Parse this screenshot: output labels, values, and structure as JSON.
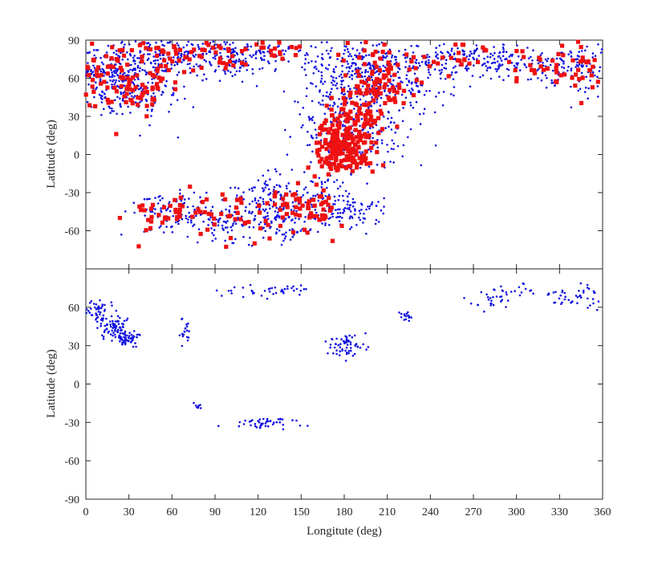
{
  "chart_data": [
    {
      "type": "scatter",
      "panel": "top",
      "xlabel": "",
      "ylabel": "Latitude (deg)",
      "xlim": [
        0,
        360
      ],
      "ylim": [
        -90,
        90
      ],
      "xticks": [],
      "yticks": [
        -60,
        -30,
        0,
        30,
        60,
        90
      ],
      "ytick_labels": [
        "-60",
        "-30",
        "0",
        "30",
        "60",
        "90"
      ],
      "grid": false,
      "series": [
        {
          "color": "#1010e0",
          "marker": "dot",
          "clusters": [
            {
              "x": 0,
              "y": 70,
              "sx": 2,
              "sy": 12,
              "n": 20
            },
            {
              "x": 15,
              "y": 60,
              "sx": 12,
              "sy": 12,
              "n": 180
            },
            {
              "x": 40,
              "y": 55,
              "sx": 12,
              "sy": 14,
              "n": 150
            },
            {
              "x": 55,
              "y": 75,
              "sx": 18,
              "sy": 8,
              "n": 110
            },
            {
              "x": 80,
              "y": 80,
              "sx": 22,
              "sy": 6,
              "n": 90
            },
            {
              "x": 105,
              "y": 70,
              "sx": 12,
              "sy": 8,
              "n": 60
            },
            {
              "x": 130,
              "y": 80,
              "sx": 18,
              "sy": 6,
              "n": 60
            },
            {
              "x": 175,
              "y": 55,
              "sx": 14,
              "sy": 16,
              "n": 170
            },
            {
              "x": 200,
              "y": 65,
              "sx": 12,
              "sy": 14,
              "n": 150
            },
            {
              "x": 225,
              "y": 60,
              "sx": 15,
              "sy": 14,
              "n": 130
            },
            {
              "x": 255,
              "y": 75,
              "sx": 12,
              "sy": 8,
              "n": 70
            },
            {
              "x": 285,
              "y": 75,
              "sx": 15,
              "sy": 8,
              "n": 90
            },
            {
              "x": 320,
              "y": 70,
              "sx": 15,
              "sy": 8,
              "n": 90
            },
            {
              "x": 350,
              "y": 68,
              "sx": 10,
              "sy": 10,
              "n": 70
            },
            {
              "x": 180,
              "y": 10,
              "sx": 18,
              "sy": 15,
              "n": 130
            },
            {
              "x": 205,
              "y": 15,
              "sx": 12,
              "sy": 12,
              "n": 50
            },
            {
              "x": 60,
              "y": -45,
              "sx": 15,
              "sy": 8,
              "n": 100
            },
            {
              "x": 100,
              "y": -55,
              "sx": 18,
              "sy": 7,
              "n": 90
            },
            {
              "x": 125,
              "y": -35,
              "sx": 12,
              "sy": 8,
              "n": 110
            },
            {
              "x": 140,
              "y": -55,
              "sx": 10,
              "sy": 7,
              "n": 50
            },
            {
              "x": 165,
              "y": -35,
              "sx": 15,
              "sy": 10,
              "n": 100
            },
            {
              "x": 190,
              "y": -45,
              "sx": 12,
              "sy": 8,
              "n": 60
            }
          ]
        },
        {
          "color": "#ee1111",
          "marker": "square",
          "clusters": [
            {
              "x": 10,
              "y": 65,
              "sx": 12,
              "sy": 14,
              "n": 55
            },
            {
              "x": 40,
              "y": 55,
              "sx": 12,
              "sy": 15,
              "n": 55
            },
            {
              "x": 60,
              "y": 80,
              "sx": 18,
              "sy": 6,
              "n": 35
            },
            {
              "x": 90,
              "y": 80,
              "sx": 15,
              "sy": 6,
              "n": 25
            },
            {
              "x": 130,
              "y": 82,
              "sx": 20,
              "sy": 5,
              "n": 20
            },
            {
              "x": 178,
              "y": 5,
              "sx": 10,
              "sy": 10,
              "n": 170
            },
            {
              "x": 188,
              "y": 25,
              "sx": 12,
              "sy": 10,
              "n": 70
            },
            {
              "x": 200,
              "y": 55,
              "sx": 10,
              "sy": 18,
              "n": 70
            },
            {
              "x": 215,
              "y": 65,
              "sx": 12,
              "sy": 14,
              "n": 35
            },
            {
              "x": 260,
              "y": 75,
              "sx": 15,
              "sy": 8,
              "n": 20
            },
            {
              "x": 320,
              "y": 70,
              "sx": 18,
              "sy": 8,
              "n": 30
            },
            {
              "x": 350,
              "y": 70,
              "sx": 10,
              "sy": 10,
              "n": 25
            },
            {
              "x": 60,
              "y": -45,
              "sx": 15,
              "sy": 8,
              "n": 35
            },
            {
              "x": 110,
              "y": -50,
              "sx": 20,
              "sy": 10,
              "n": 35
            },
            {
              "x": 140,
              "y": -40,
              "sx": 12,
              "sy": 10,
              "n": 35
            },
            {
              "x": 165,
              "y": -45,
              "sx": 12,
              "sy": 10,
              "n": 25
            }
          ]
        }
      ]
    },
    {
      "type": "scatter",
      "panel": "bottom",
      "xlabel": "Longitute (deg)",
      "ylabel": "Latitude (deg)",
      "xlim": [
        0,
        360
      ],
      "ylim": [
        -90,
        90
      ],
      "xticks": [
        0,
        30,
        60,
        90,
        120,
        150,
        180,
        210,
        240,
        270,
        300,
        330,
        360
      ],
      "xtick_labels": [
        "0",
        "30",
        "60",
        "90",
        "120",
        "150",
        "180",
        "210",
        "240",
        "270",
        "300",
        "330",
        "360"
      ],
      "yticks": [
        -90,
        -60,
        -30,
        0,
        30,
        60
      ],
      "ytick_labels": [
        "-90",
        "-60",
        "-30",
        "0",
        "30",
        "60"
      ],
      "grid": false,
      "series": [
        {
          "color": "#1010e0",
          "marker": "dot",
          "clusters": [
            {
              "x": 8,
              "y": 57,
              "sx": 5,
              "sy": 5,
              "n": 45
            },
            {
              "x": 20,
              "y": 45,
              "sx": 5,
              "sy": 5,
              "n": 70
            },
            {
              "x": 29,
              "y": 36,
              "sx": 4,
              "sy": 3,
              "n": 60
            },
            {
              "x": 69,
              "y": 40,
              "sx": 3,
              "sy": 5,
              "n": 20
            },
            {
              "x": 105,
              "y": 72,
              "sx": 10,
              "sy": 3,
              "n": 15
            },
            {
              "x": 140,
              "y": 74,
              "sx": 10,
              "sy": 2,
              "n": 25
            },
            {
              "x": 182,
              "y": 30,
              "sx": 7,
              "sy": 5,
              "n": 60
            },
            {
              "x": 223,
              "y": 52,
              "sx": 3,
              "sy": 3,
              "n": 15
            },
            {
              "x": 283,
              "y": 68,
              "sx": 8,
              "sy": 5,
              "n": 30
            },
            {
              "x": 305,
              "y": 74,
              "sx": 6,
              "sy": 2,
              "n": 10
            },
            {
              "x": 340,
              "y": 68,
              "sx": 12,
              "sy": 5,
              "n": 45
            },
            {
              "x": 78,
              "y": -18,
              "sx": 2,
              "sy": 2,
              "n": 8
            },
            {
              "x": 125,
              "y": -31,
              "sx": 12,
              "sy": 2,
              "n": 45
            }
          ]
        }
      ]
    }
  ]
}
